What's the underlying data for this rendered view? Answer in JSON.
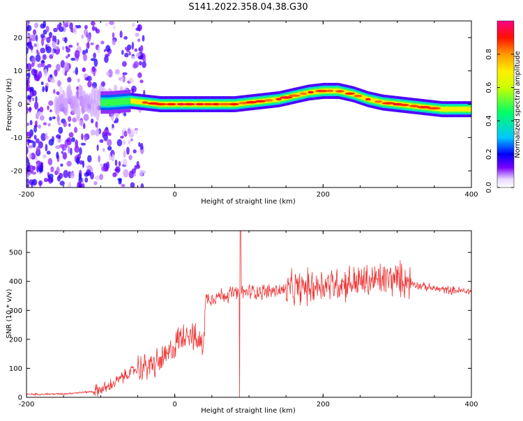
{
  "title": "S141.2022.358.04.38.G30",
  "colors": {
    "snr_line": "#ee3333",
    "colormap": [
      "#ffffff",
      "#6a00ff",
      "#0000ff",
      "#00c8ff",
      "#00ff66",
      "#ffff00",
      "#ff9900",
      "#ff0000",
      "#ff0088"
    ]
  },
  "chart_data": [
    {
      "type": "heatmap",
      "xlabel": "Height of straight line (km)",
      "ylabel": "Frequency (Hz)",
      "xlim": [
        -200,
        400
      ],
      "ylim": [
        -25,
        25
      ],
      "x_ticks": [
        -200,
        0,
        200,
        400
      ],
      "y_ticks": [
        -20,
        -10,
        0,
        10,
        20
      ],
      "grid": false,
      "colorbar": {
        "label": "Normalized spectral amplitude",
        "range": [
          0,
          1
        ],
        "ticks": [
          0.0,
          0.2,
          0.4,
          0.6,
          0.8
        ]
      },
      "ridge_frequency_hz": {
        "x": [
          -90,
          -60,
          -40,
          -20,
          0,
          20,
          40,
          60,
          80,
          100,
          120,
          140,
          160,
          180,
          200,
          220,
          240,
          260,
          280,
          300,
          320,
          340,
          360,
          380,
          400
        ],
        "y": [
          0.5,
          1.0,
          0.5,
          0.0,
          0.0,
          0.0,
          0.0,
          0.0,
          0.0,
          0.5,
          1.0,
          1.5,
          2.5,
          3.5,
          4.0,
          4.0,
          3.0,
          1.5,
          0.5,
          0.0,
          -0.5,
          -1.0,
          -1.5,
          -1.5,
          -1.5
        ]
      }
    },
    {
      "type": "line",
      "xlabel": "Height of straight line (km)",
      "ylabel": "SNR (10 * v/v)",
      "xlim": [
        -200,
        400
      ],
      "ylim": [
        0,
        575
      ],
      "x_ticks": [
        -200,
        0,
        200,
        400
      ],
      "y_ticks": [
        0,
        100,
        200,
        300,
        400,
        500
      ],
      "grid": false,
      "envelope": {
        "x": [
          -200,
          -150,
          -110,
          -90,
          -70,
          -50,
          -30,
          -10,
          0,
          10,
          20,
          30,
          38,
          42,
          60,
          80,
          90,
          100,
          120,
          150,
          180,
          200,
          230,
          260,
          290,
          310,
          330,
          350,
          370,
          400
        ],
        "y": [
          10,
          12,
          20,
          35,
          70,
          100,
          110,
          140,
          180,
          215,
          230,
          190,
          185,
          340,
          350,
          360,
          360,
          365,
          365,
          370,
          380,
          390,
          395,
          400,
          410,
          405,
          385,
          375,
          370,
          365
        ]
      }
    }
  ]
}
